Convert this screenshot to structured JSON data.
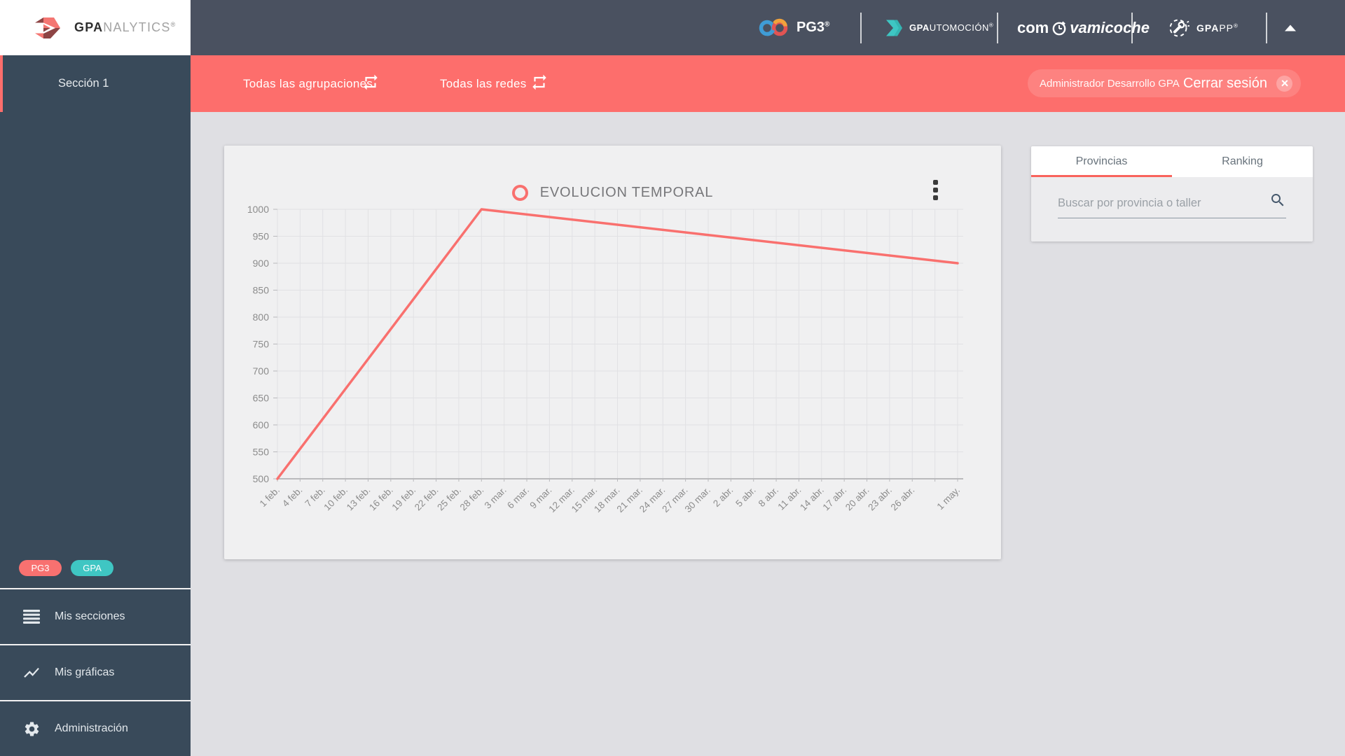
{
  "logo": {
    "bold": "GPA",
    "light": "NALYTICS",
    "reg": "®"
  },
  "header": {
    "pg3_label": "PG3",
    "pg3_reg": "®",
    "gpautomocion_bold": "GPA",
    "gpautomocion_light": "UTOMOCIÓN",
    "gpautomocion_reg": "®",
    "comprova_pre": "com",
    "comprova_post": "vamicoche",
    "gpapp_bold": "GPA",
    "gpapp_light": "PP",
    "gpapp_reg": "®"
  },
  "filter_bar": {
    "agrupaciones_label": "Todas las agrupaciones",
    "redes_label": "Todas las redes",
    "user_name": "Administrador Desarrollo GPA",
    "logout_label": "Cerrar sesión"
  },
  "sidebar": {
    "section_label": "Sección 1",
    "badge_pg3": "PG3",
    "badge_gpa": "GPA",
    "items": [
      {
        "label": "Mis secciones"
      },
      {
        "label": "Mis gráficas"
      },
      {
        "label": "Administración"
      }
    ]
  },
  "panel": {
    "tab_provincias": "Provincias",
    "tab_ranking": "Ranking",
    "search_placeholder": "Buscar por provincia o taller"
  },
  "chart_data": {
    "type": "line",
    "title": "EVOLUCION TEMPORAL",
    "legend": [
      {
        "label": "EVOLUCION TEMPORAL",
        "color": "#f9706e",
        "marker": "circle-outline"
      }
    ],
    "categories": [
      "1 feb.",
      "4 feb.",
      "7 feb.",
      "10 feb.",
      "13 feb.",
      "16 feb.",
      "19 feb.",
      "22 feb.",
      "25 feb.",
      "28 feb.",
      "3 mar.",
      "6 mar.",
      "9 mar.",
      "12 mar.",
      "15 mar.",
      "18 mar.",
      "21 mar.",
      "24 mar.",
      "27 mar.",
      "30 mar.",
      "2 abr.",
      "5 abr.",
      "8 abr.",
      "11 abr.",
      "14 abr.",
      "17 abr.",
      "20 abr.",
      "23 abr.",
      "26 abr.",
      "",
      "1 may."
    ],
    "series": [
      {
        "name": "EVOLUCION TEMPORAL",
        "points": [
          {
            "x": "1 feb.",
            "y": 500
          },
          {
            "x": "28 feb.",
            "y": 1000
          },
          {
            "x": "1 may.",
            "y": 900
          }
        ]
      }
    ],
    "ylim": [
      500,
      1000
    ],
    "ytick_step": 50,
    "grid": true,
    "legend_position": "top-center",
    "colors": {
      "line": "#f9706e",
      "grid": "#e1e1e4",
      "axis": "#a8a8ab",
      "tick_text": "#8c8c8c"
    }
  }
}
